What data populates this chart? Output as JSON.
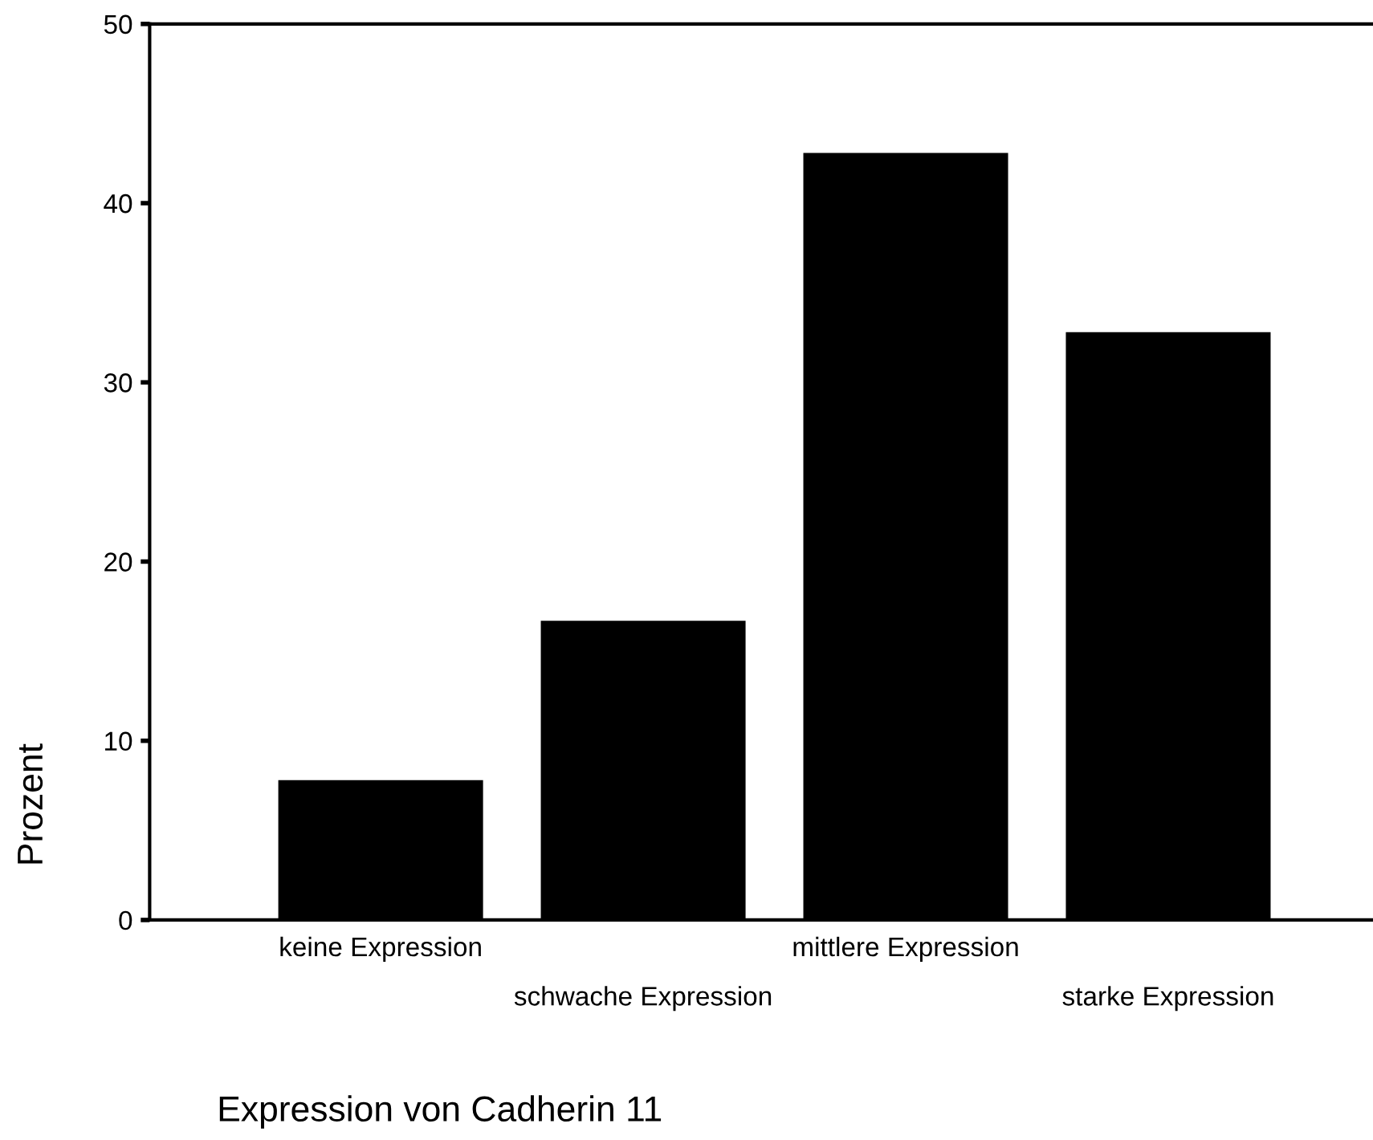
{
  "chart_data": {
    "type": "bar",
    "xlabel": "Expression von Cadherin 11",
    "ylabel": "Prozent",
    "categories": [
      "keine Expression",
      "schwache Expression",
      "mittlere Expression",
      "starke Expression"
    ],
    "values": [
      7.8,
      16.7,
      42.8,
      32.8
    ],
    "color": "#000000",
    "ylim": [
      0,
      50
    ],
    "yticks": [
      0,
      10,
      20,
      30,
      40,
      50
    ],
    "grid": false,
    "legend": false
  }
}
